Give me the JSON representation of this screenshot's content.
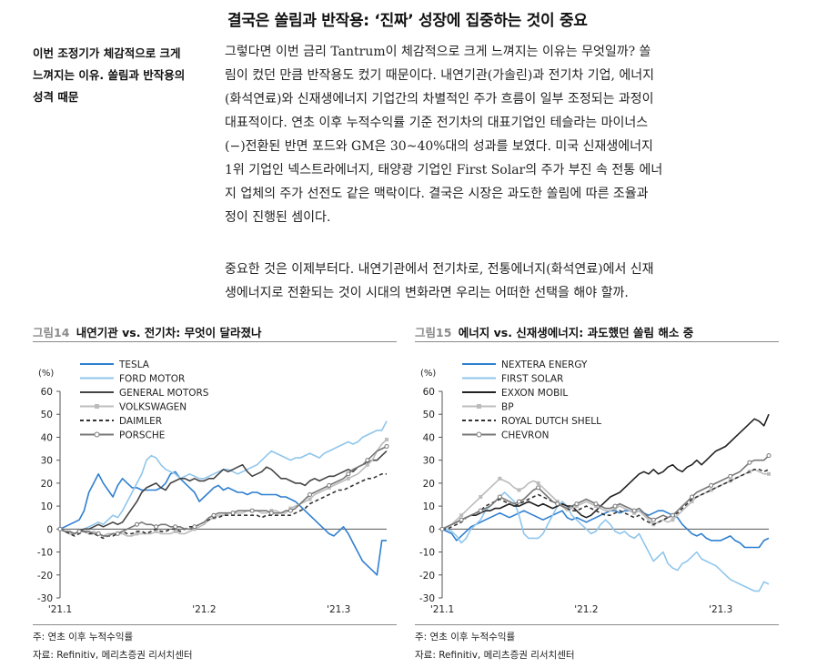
{
  "page": {
    "title": "결국은 쏠림과 반작용: ‘진짜’ 성장에 집중하는 것이 중요",
    "sidebar_lines": [
      "이번 조정기가 체감적으로 크게",
      "느껴지는 이유. 쏠림과 반작용의",
      "성격 때문"
    ],
    "paragraph1_lines": [
      "그렇다면 이번 금리 Tantrum이 체감적으로 크게 느껴지는 이유는 무엇일까? 쏠",
      "림이 컸던 만큼 반작용도 컸기 때문이다. 내연기관(가솔린)과 전기차 기업, 에너지",
      "(화석연료)와 신재생에너지 기업간의 차별적인 주가 흐름이 일부 조정되는 과정이",
      "대표적이다. 연초 이후 누적수익률 기준 전기차의 대표기업인 테슬라는 마이너스",
      "(−)전환된 반면 포드와 GM은 30~40%대의 성과를 보였다. 미국 신재생에너지",
      "1위 기업인 넥스트라에너지, 태양광 기업인 First Solar의 주가 부진 속 전통 에너",
      "지 업체의 주가 선전도 같은 맥락이다. 결국은 시장은 과도한 쏠림에 따른 조율과",
      "정이 진행된 셈이다."
    ],
    "paragraph2_lines": [
      "중요한 것은 이제부터다. 내연기관에서 전기차로, 전통에너지(화석연료)에서 신재",
      "생에너지로 전환되는 것이 시대의 변화라면 우리는 어떠한 선택을 해야 할까."
    ]
  },
  "figures": [
    {
      "number": "그림14",
      "title": "내연기관 vs. 전기차: 무엇이 달라졌나",
      "note": "주: 연초 이후 누적수익률",
      "source": "자료: Refinitiv, 메리츠증권 리서치센터"
    },
    {
      "number": "그림15",
      "title": "에너지 vs. 신재생에너지: 과도했던 쏠림 해소 중",
      "note": "주: 연초 이후 누적수익률",
      "source": "자료: Refinitiv, 메리츠증권 리서치센터"
    }
  ],
  "chart_data": [
    {
      "type": "line",
      "title": "내연기관 vs. 전기차: 무엇이 달라졌나",
      "ylabel": "(%)",
      "ylim": [
        -30,
        60
      ],
      "yticks": [
        -30,
        -20,
        -10,
        0,
        10,
        20,
        30,
        40,
        50,
        60
      ],
      "xlabels": [
        "'21.1",
        "'21.2",
        "'21.3"
      ],
      "xlabel_positions": [
        0,
        30,
        58
      ],
      "n_points": 69,
      "legend_location": "top-left",
      "series": [
        {
          "name": "TESLA",
          "color": "#2f7fd0",
          "dash": "",
          "marker": "",
          "values": [
            0,
            1,
            2,
            3,
            4,
            8,
            16,
            20,
            24,
            20,
            17,
            14,
            19,
            22,
            20,
            18,
            18,
            17,
            17,
            17,
            17,
            18,
            20,
            24,
            25,
            22,
            20,
            18,
            16,
            12,
            14,
            16,
            18,
            19,
            17,
            18,
            17,
            16,
            16,
            15,
            16,
            16,
            15,
            15,
            15,
            15,
            14,
            14,
            13,
            12,
            10,
            8,
            6,
            4,
            2,
            0,
            -2,
            -3,
            -1,
            1,
            -2,
            -6,
            -10,
            -14,
            -16,
            -18,
            -20,
            -5,
            -5
          ]
        },
        {
          "name": "FORD MOTOR",
          "color": "#8fc6ec",
          "dash": "",
          "marker": "",
          "values": [
            0,
            -1,
            -2,
            -2,
            -1,
            0,
            1,
            2,
            3,
            2,
            4,
            6,
            5,
            8,
            12,
            16,
            20,
            24,
            30,
            32,
            31,
            28,
            26,
            25,
            24,
            22,
            23,
            24,
            23,
            22,
            22,
            23,
            24,
            25,
            26,
            26,
            25,
            24,
            25,
            26,
            27,
            28,
            30,
            32,
            34,
            33,
            32,
            31,
            30,
            31,
            31,
            32,
            33,
            32,
            31,
            33,
            34,
            35,
            36,
            37,
            38,
            37,
            38,
            40,
            41,
            42,
            43,
            43,
            47
          ]
        },
        {
          "name": "GENERAL MOTORS",
          "color": "#444444",
          "dash": "",
          "marker": "",
          "values": [
            0,
            -1,
            -2,
            -2,
            -1,
            0,
            0,
            1,
            2,
            1,
            2,
            3,
            2,
            3,
            6,
            9,
            12,
            16,
            18,
            19,
            20,
            18,
            17,
            20,
            21,
            22,
            22,
            21,
            22,
            21,
            21,
            22,
            22,
            24,
            26,
            25,
            26,
            27,
            28,
            25,
            23,
            24,
            25,
            27,
            26,
            24,
            22,
            22,
            21,
            20,
            20,
            19,
            21,
            22,
            21,
            22,
            23,
            23,
            24,
            25,
            26,
            25,
            27,
            28,
            29,
            30,
            30,
            32,
            34
          ]
        },
        {
          "name": "VOLKSWAGEN",
          "color": "#bcbcbc",
          "dash": "",
          "marker": "square",
          "values": [
            0,
            -1,
            -2,
            -2,
            -1,
            -1,
            -2,
            -1,
            -2,
            -3,
            -2,
            -2,
            -2,
            -2,
            -3,
            -3,
            -2,
            -2,
            -2,
            -2,
            -1,
            -2,
            -2,
            -2,
            -1,
            -2,
            -2,
            -1,
            0,
            1,
            2,
            4,
            5,
            6,
            6,
            7,
            7,
            7,
            7,
            8,
            8,
            8,
            7,
            7,
            8,
            8,
            7,
            7,
            9,
            10,
            11,
            12,
            13,
            15,
            16,
            17,
            18,
            19,
            20,
            21,
            22,
            23,
            24,
            26,
            28,
            30,
            34,
            37,
            39
          ]
        },
        {
          "name": "DAIMLER",
          "color": "#333333",
          "dash": "4,3",
          "marker": "",
          "values": [
            0,
            -1,
            -2,
            -3,
            -2,
            -1,
            -2,
            -2,
            -3,
            -4,
            -3,
            -3,
            -2,
            -1,
            -2,
            -2,
            -1,
            -1,
            -2,
            -1,
            0,
            -1,
            -1,
            0,
            0,
            -1,
            0,
            1,
            1,
            2,
            3,
            4,
            5,
            5,
            6,
            6,
            6,
            6,
            6,
            6,
            6,
            6,
            5,
            6,
            6,
            6,
            6,
            6,
            6,
            7,
            8,
            9,
            11,
            12,
            13,
            14,
            15,
            16,
            17,
            17,
            18,
            19,
            20,
            21,
            22,
            22,
            23,
            24,
            24
          ]
        },
        {
          "name": "PORSCHE",
          "color": "#777777",
          "dash": "",
          "marker": "circle",
          "values": [
            0,
            -1,
            -1,
            -2,
            -1,
            -1,
            -1,
            -2,
            -2,
            -3,
            -3,
            -2,
            -2,
            -1,
            0,
            1,
            2,
            3,
            2,
            2,
            1,
            2,
            2,
            1,
            1,
            1,
            0,
            0,
            1,
            2,
            3,
            5,
            6,
            7,
            7,
            7,
            7,
            8,
            8,
            8,
            8,
            8,
            8,
            8,
            7,
            7,
            7,
            8,
            8,
            9,
            11,
            13,
            15,
            16,
            17,
            18,
            19,
            20,
            21,
            22,
            24,
            26,
            27,
            28,
            30,
            32,
            34,
            35,
            36
          ]
        }
      ]
    },
    {
      "type": "line",
      "title": "에너지 vs. 신재생에너지: 과도했던 쏠림 해소 중",
      "ylabel": "(%)",
      "ylim": [
        -30,
        60
      ],
      "yticks": [
        -30,
        -20,
        -10,
        0,
        10,
        20,
        30,
        40,
        50,
        60
      ],
      "xlabels": [
        "'21.1",
        "'21.2",
        "'21.3"
      ],
      "xlabel_positions": [
        0,
        30,
        58
      ],
      "n_points": 69,
      "legend_location": "top-left",
      "series": [
        {
          "name": "NEXTERA ENERGY",
          "color": "#2f7fd0",
          "dash": "",
          "marker": "",
          "values": [
            0,
            -1,
            -2,
            -5,
            -3,
            -1,
            1,
            2,
            3,
            4,
            5,
            6,
            7,
            6,
            5,
            6,
            7,
            8,
            7,
            6,
            5,
            4,
            5,
            6,
            7,
            8,
            5,
            4,
            5,
            4,
            3,
            4,
            5,
            6,
            7,
            8,
            8,
            7,
            8,
            8,
            7,
            8,
            7,
            6,
            7,
            8,
            8,
            7,
            6,
            5,
            2,
            0,
            -2,
            -3,
            -2,
            -4,
            -5,
            -5,
            -5,
            -4,
            -3,
            -5,
            -6,
            -8,
            -8,
            -8,
            -8,
            -5,
            -4
          ]
        },
        {
          "name": "FIRST SOLAR",
          "color": "#8fc6ec",
          "dash": "",
          "marker": "",
          "values": [
            0,
            0,
            -1,
            -3,
            -6,
            -4,
            0,
            2,
            4,
            8,
            10,
            12,
            14,
            16,
            14,
            12,
            6,
            -2,
            -4,
            -4,
            -4,
            -2,
            2,
            6,
            10,
            12,
            10,
            6,
            4,
            2,
            0,
            -2,
            -1,
            2,
            4,
            2,
            -1,
            -2,
            -1,
            -3,
            -4,
            -2,
            -6,
            -10,
            -14,
            -12,
            -10,
            -15,
            -17,
            -18,
            -15,
            -14,
            -12,
            -10,
            -13,
            -14,
            -15,
            -16,
            -18,
            -20,
            -22,
            -23,
            -24,
            -25,
            -26,
            -27,
            -27,
            -23,
            -24
          ]
        },
        {
          "name": "EXXON MOBIL",
          "color": "#222222",
          "dash": "",
          "marker": "",
          "values": [
            0,
            1,
            2,
            3,
            4,
            5,
            6,
            6,
            7,
            8,
            8,
            9,
            9,
            10,
            11,
            10,
            10,
            11,
            12,
            11,
            10,
            11,
            10,
            9,
            10,
            11,
            10,
            10,
            8,
            6,
            5,
            6,
            8,
            10,
            12,
            14,
            15,
            16,
            18,
            20,
            22,
            24,
            25,
            24,
            26,
            24,
            25,
            27,
            28,
            26,
            25,
            27,
            28,
            30,
            28,
            30,
            32,
            34,
            35,
            36,
            38,
            40,
            42,
            44,
            46,
            48,
            47,
            45,
            50
          ]
        },
        {
          "name": "BP",
          "color": "#bcbcbc",
          "dash": "",
          "marker": "square",
          "values": [
            0,
            1,
            2,
            4,
            6,
            8,
            10,
            12,
            14,
            16,
            18,
            20,
            22,
            21,
            20,
            18,
            17,
            18,
            20,
            21,
            20,
            18,
            16,
            14,
            12,
            10,
            8,
            9,
            10,
            11,
            12,
            11,
            10,
            9,
            8,
            8,
            9,
            10,
            9,
            8,
            7,
            8,
            6,
            4,
            2,
            3,
            4,
            3,
            4,
            6,
            8,
            10,
            12,
            14,
            15,
            16,
            17,
            18,
            19,
            20,
            21,
            22,
            23,
            24,
            25,
            26,
            25,
            24,
            24
          ]
        },
        {
          "name": "ROYAL DUTCH SHELL",
          "color": "#333333",
          "dash": "4,3",
          "marker": "",
          "values": [
            0,
            0,
            1,
            2,
            3,
            5,
            6,
            7,
            8,
            10,
            11,
            12,
            13,
            12,
            11,
            10,
            11,
            12,
            13,
            14,
            15,
            14,
            13,
            12,
            11,
            10,
            9,
            8,
            8,
            9,
            10,
            9,
            8,
            7,
            6,
            6,
            7,
            8,
            7,
            6,
            5,
            6,
            4,
            3,
            2,
            3,
            4,
            5,
            6,
            7,
            9,
            11,
            13,
            14,
            15,
            16,
            17,
            18,
            19,
            20,
            21,
            22,
            23,
            24,
            25,
            26,
            26,
            25,
            26
          ]
        },
        {
          "name": "CHEVRON",
          "color": "#777777",
          "dash": "",
          "marker": "circle",
          "values": [
            0,
            1,
            2,
            3,
            4,
            5,
            6,
            7,
            8,
            9,
            10,
            12,
            14,
            13,
            12,
            11,
            12,
            13,
            15,
            17,
            18,
            16,
            14,
            12,
            11,
            10,
            9,
            10,
            11,
            12,
            13,
            12,
            11,
            10,
            9,
            9,
            10,
            11,
            10,
            9,
            8,
            9,
            7,
            5,
            4,
            5,
            6,
            5,
            6,
            8,
            10,
            12,
            14,
            16,
            17,
            18,
            19,
            20,
            21,
            22,
            23,
            24,
            25,
            27,
            29,
            30,
            30,
            30,
            32
          ]
        }
      ]
    }
  ]
}
